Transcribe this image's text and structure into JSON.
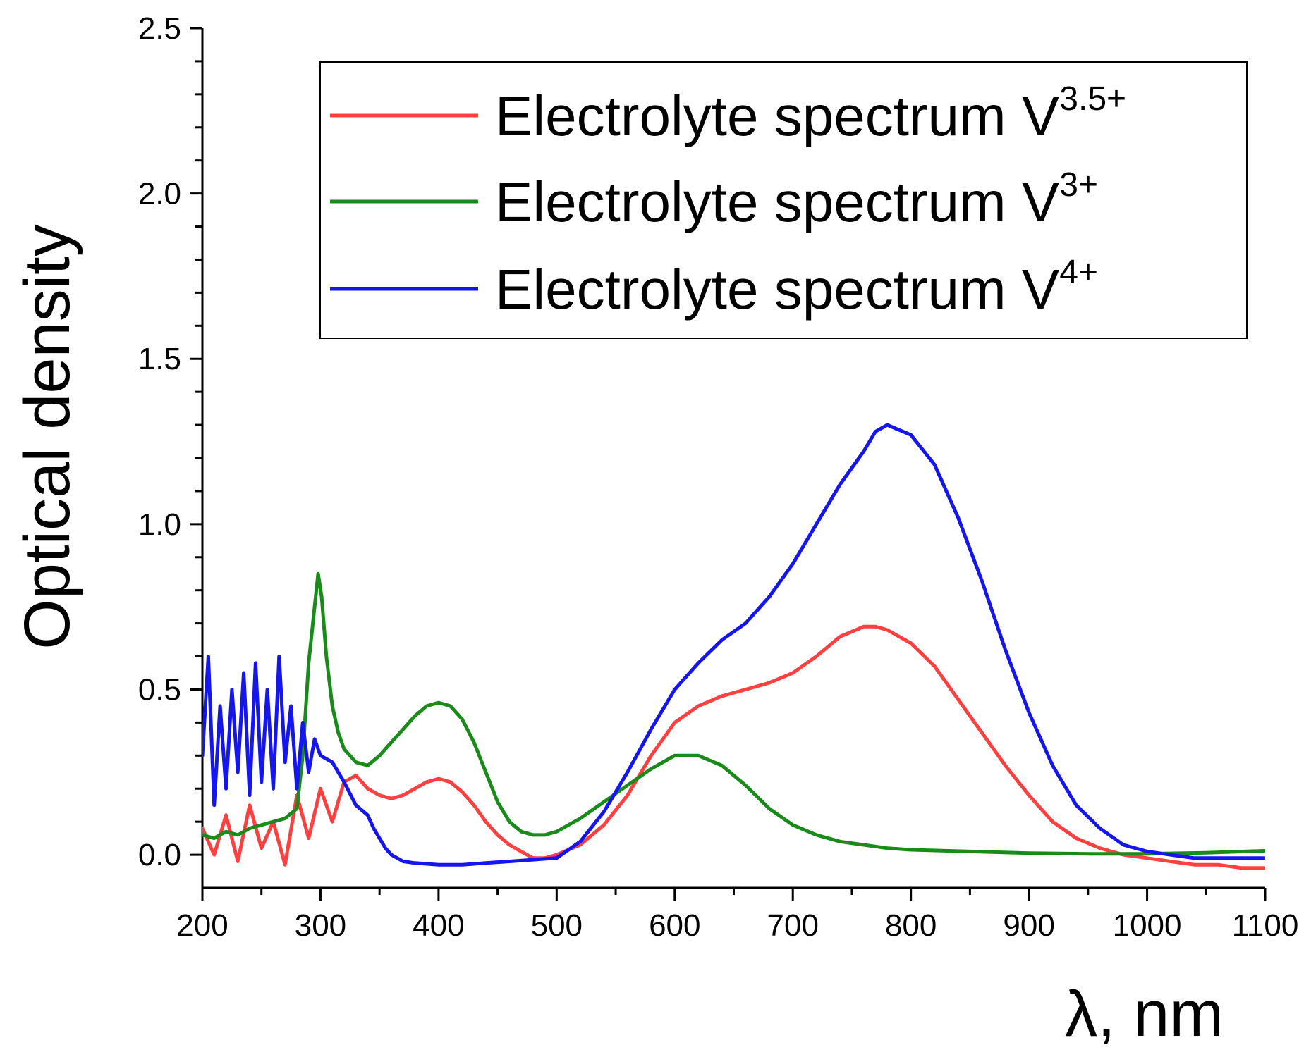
{
  "chart_data": {
    "type": "line",
    "title": "",
    "xlabel": "λ, nm",
    "ylabel": "Optical density",
    "xlim": [
      200,
      1100
    ],
    "ylim": [
      -0.1,
      2.5
    ],
    "x_ticks": [
      200,
      300,
      400,
      500,
      600,
      700,
      800,
      900,
      1000,
      1100
    ],
    "x_tick_labels": [
      "200",
      "300",
      "400",
      "500",
      "600",
      "700",
      "800",
      "900",
      "1000",
      "1100"
    ],
    "y_ticks": [
      0.0,
      0.5,
      1.0,
      1.5,
      2.0,
      2.5
    ],
    "y_tick_labels": [
      "0.0",
      "0.5",
      "1.0",
      "1.5",
      "2.0",
      "2.5"
    ],
    "grid": false,
    "legend_position": "top-right",
    "series": [
      {
        "name": "Electrolyte spectrum V3.5+",
        "label_main": "Electrolyte spectrum V",
        "label_sup": "3.5+",
        "color": "#ff4040",
        "x": [
          200,
          210,
          220,
          230,
          240,
          250,
          260,
          270,
          280,
          290,
          300,
          310,
          320,
          330,
          340,
          350,
          360,
          370,
          380,
          390,
          400,
          410,
          420,
          430,
          440,
          450,
          460,
          470,
          480,
          490,
          500,
          520,
          540,
          560,
          580,
          600,
          620,
          640,
          660,
          680,
          700,
          720,
          740,
          760,
          770,
          780,
          800,
          820,
          840,
          860,
          880,
          900,
          920,
          940,
          960,
          980,
          1000,
          1020,
          1040,
          1060,
          1080,
          1100
        ],
        "y": [
          0.08,
          0.0,
          0.12,
          -0.02,
          0.15,
          0.02,
          0.1,
          -0.03,
          0.18,
          0.05,
          0.2,
          0.1,
          0.22,
          0.24,
          0.2,
          0.18,
          0.17,
          0.18,
          0.2,
          0.22,
          0.23,
          0.22,
          0.19,
          0.15,
          0.1,
          0.06,
          0.03,
          0.01,
          -0.01,
          -0.01,
          0.0,
          0.03,
          0.09,
          0.18,
          0.3,
          0.4,
          0.45,
          0.48,
          0.5,
          0.52,
          0.55,
          0.6,
          0.66,
          0.69,
          0.69,
          0.68,
          0.64,
          0.57,
          0.47,
          0.37,
          0.27,
          0.18,
          0.1,
          0.05,
          0.02,
          0.0,
          -0.01,
          -0.02,
          -0.03,
          -0.03,
          -0.04,
          -0.04
        ]
      },
      {
        "name": "Electrolyte spectrum V3+",
        "label_main": "Electrolyte spectrum V",
        "label_sup": "3+",
        "color": "#1a8a1a",
        "x": [
          200,
          210,
          220,
          230,
          240,
          250,
          260,
          270,
          280,
          285,
          290,
          295,
          298,
          301,
          305,
          310,
          315,
          320,
          330,
          340,
          350,
          360,
          370,
          380,
          390,
          400,
          410,
          420,
          430,
          440,
          450,
          460,
          470,
          480,
          490,
          500,
          520,
          540,
          560,
          580,
          600,
          620,
          640,
          660,
          680,
          700,
          720,
          740,
          760,
          780,
          800,
          850,
          900,
          950,
          1000,
          1050,
          1100
        ],
        "y": [
          0.06,
          0.05,
          0.07,
          0.06,
          0.08,
          0.09,
          0.1,
          0.11,
          0.14,
          0.3,
          0.58,
          0.75,
          0.85,
          0.78,
          0.6,
          0.45,
          0.37,
          0.32,
          0.28,
          0.27,
          0.3,
          0.34,
          0.38,
          0.42,
          0.45,
          0.46,
          0.45,
          0.41,
          0.34,
          0.25,
          0.16,
          0.1,
          0.07,
          0.06,
          0.06,
          0.07,
          0.11,
          0.16,
          0.21,
          0.26,
          0.3,
          0.3,
          0.27,
          0.21,
          0.14,
          0.09,
          0.06,
          0.04,
          0.03,
          0.02,
          0.015,
          0.01,
          0.005,
          0.003,
          0.003,
          0.006,
          0.012
        ]
      },
      {
        "name": "Electrolyte spectrum V4+",
        "label_main": "Electrolyte spectrum V",
        "label_sup": "4+",
        "color": "#1515ee",
        "x": [
          200,
          205,
          210,
          215,
          220,
          225,
          230,
          235,
          240,
          245,
          250,
          255,
          260,
          265,
          270,
          275,
          280,
          285,
          290,
          295,
          300,
          310,
          320,
          330,
          340,
          345,
          350,
          355,
          360,
          370,
          380,
          400,
          420,
          440,
          460,
          480,
          500,
          520,
          540,
          560,
          580,
          600,
          620,
          640,
          660,
          680,
          700,
          720,
          740,
          760,
          770,
          780,
          800,
          820,
          840,
          860,
          880,
          900,
          920,
          940,
          960,
          980,
          1000,
          1020,
          1040,
          1060,
          1080,
          1100
        ],
        "y": [
          0.3,
          0.6,
          0.15,
          0.45,
          0.2,
          0.5,
          0.25,
          0.55,
          0.18,
          0.58,
          0.22,
          0.5,
          0.2,
          0.6,
          0.28,
          0.45,
          0.2,
          0.4,
          0.25,
          0.35,
          0.3,
          0.28,
          0.22,
          0.15,
          0.12,
          0.08,
          0.05,
          0.02,
          0.0,
          -0.02,
          -0.025,
          -0.03,
          -0.03,
          -0.025,
          -0.02,
          -0.015,
          -0.01,
          0.04,
          0.13,
          0.25,
          0.38,
          0.5,
          0.58,
          0.65,
          0.7,
          0.78,
          0.88,
          1.0,
          1.12,
          1.22,
          1.28,
          1.3,
          1.27,
          1.18,
          1.02,
          0.83,
          0.62,
          0.43,
          0.27,
          0.15,
          0.08,
          0.03,
          0.01,
          -0.0,
          -0.01,
          -0.01,
          -0.01,
          -0.01
        ]
      }
    ]
  }
}
